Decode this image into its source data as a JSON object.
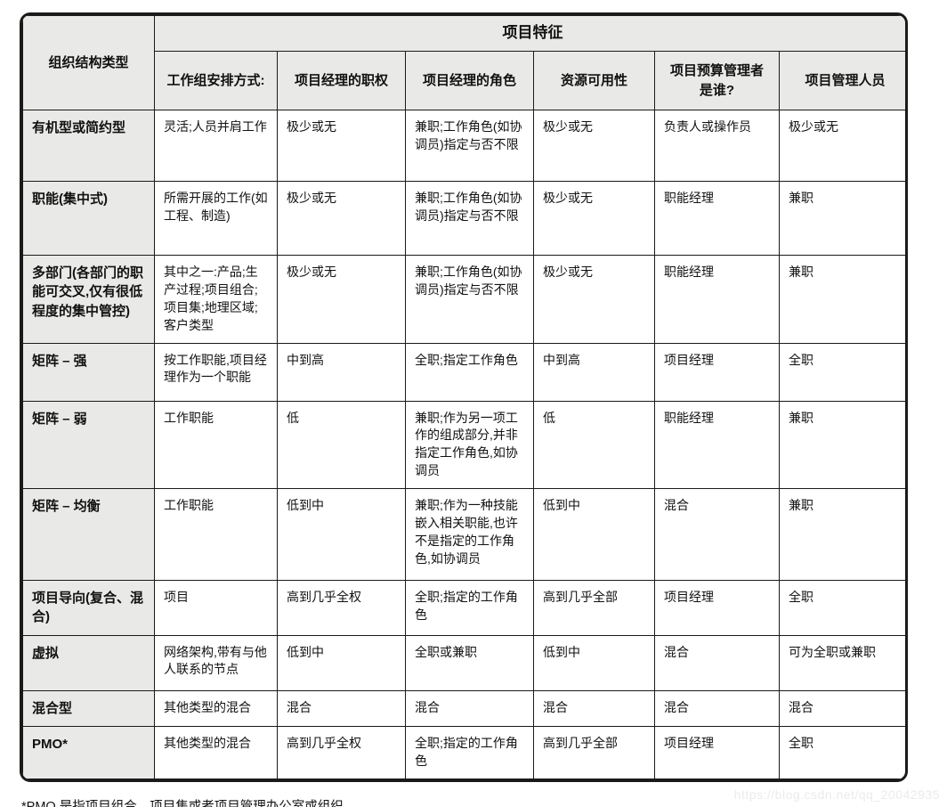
{
  "colors": {
    "header_bg": "#e9e9e7",
    "border": "#1a1a1a",
    "watermark_color": "#ebebeb"
  },
  "table": {
    "corner_header": "组织结构类型",
    "span_header": "项目特征",
    "columns": [
      "工作组安排方式:",
      "项目经理的职权",
      "项目经理的角色",
      "资源可用性",
      "项目预算管理者是谁?",
      "项目管理人员"
    ],
    "rows": [
      {
        "type": "有机型或简约型",
        "cells": [
          "灵活;人员并肩工作",
          "极少或无",
          "兼职;工作角色(如协调员)指定与否不限",
          "极少或无",
          "负责人或操作员",
          "极少或无"
        ]
      },
      {
        "type": "职能(集中式)",
        "cells": [
          "所需开展的工作(如工程、制造)",
          "极少或无",
          "兼职;工作角色(如协调员)指定与否不限",
          "极少或无",
          "职能经理",
          "兼职"
        ]
      },
      {
        "type": "多部门(各部门的职能可交叉,仅有很低程度的集中管控)",
        "cells": [
          "其中之一:产品;生产过程;项目组合;项目集;地理区域;客户类型",
          "极少或无",
          "兼职;工作角色(如协调员)指定与否不限",
          "极少或无",
          "职能经理",
          "兼职"
        ]
      },
      {
        "type": "矩阵 – 强",
        "cells": [
          "按工作职能,项目经理作为一个职能",
          "中到高",
          "全职;指定工作角色",
          "中到高",
          "项目经理",
          "全职"
        ]
      },
      {
        "type": "矩阵 – 弱",
        "cells": [
          "工作职能",
          "低",
          "兼职;作为另一项工作的组成部分,并非指定工作角色,如协调员",
          "低",
          "职能经理",
          "兼职"
        ]
      },
      {
        "type": "矩阵 – 均衡",
        "cells": [
          "工作职能",
          "低到中",
          "兼职;作为一种技能嵌入相关职能,也许不是指定的工作角色,如协调员",
          "低到中",
          "混合",
          "兼职"
        ]
      },
      {
        "type": "项目导向(复合、混合)",
        "cells": [
          "项目",
          "高到几乎全权",
          "全职;指定的工作角色",
          "高到几乎全部",
          "项目经理",
          "全职"
        ]
      },
      {
        "type": "虚拟",
        "cells": [
          "网络架构,带有与他人联系的节点",
          "低到中",
          "全职或兼职",
          "低到中",
          "混合",
          "可为全职或兼职"
        ]
      },
      {
        "type": "混合型",
        "cells": [
          "其他类型的混合",
          "混合",
          "混合",
          "混合",
          "混合",
          "混合"
        ]
      },
      {
        "type": "PMO*",
        "cells": [
          "其他类型的混合",
          "高到几乎全权",
          "全职;指定的工作角色",
          "高到几乎全部",
          "项目经理",
          "全职"
        ]
      }
    ],
    "footnote": "*PMO 是指项目组合、项目集或者项目管理办公室或组织。",
    "watermark": "https://blog.csdn.net/qq_20042935"
  }
}
